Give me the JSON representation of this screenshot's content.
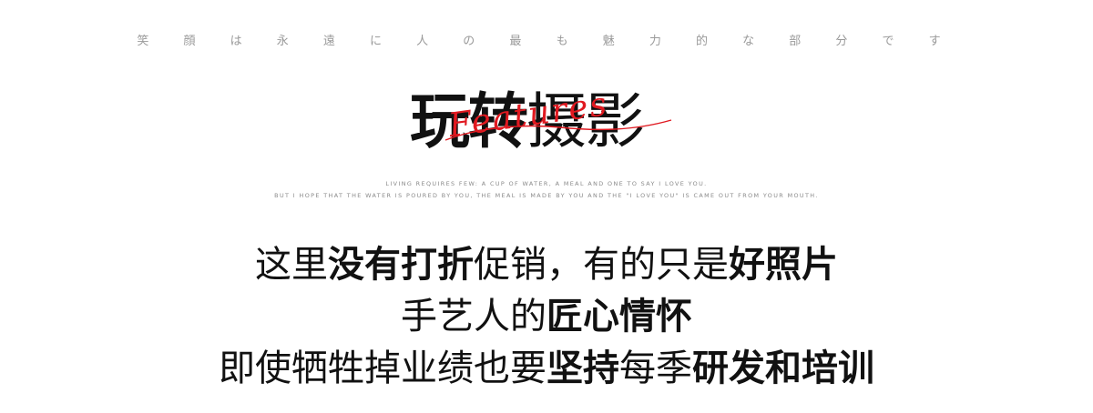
{
  "tagline": "笑 顔 は 永 遠 に 人 の 最 も 魅 力 的 な 部 分 で す",
  "title": {
    "bold": "玩转",
    "light": "摄影",
    "script": "Features"
  },
  "english": {
    "line1": "LIVING REQUIRES FEW: A CUP OF WATER, A MEAL AND ONE TO SAY I LOVE YOU.",
    "line2": "BUT I HOPE THAT THE WATER IS POURED BY YOU, THE MEAL IS MADE BY YOU AND THE \"I LOVE YOU\" IS CAME OUT FROM YOUR MOUTH."
  },
  "lines": {
    "line1": {
      "part1": "这里",
      "part2": "没有打折",
      "part3": "促销，有的只是",
      "part4": "好照片"
    },
    "line2": {
      "part1": "手艺人的",
      "part2": "匠心情怀"
    },
    "line3": {
      "part1": "即使牺牲掉业绩也要",
      "part2": "坚持",
      "part3": "每季",
      "part4": "研发和培训"
    }
  },
  "colors": {
    "accent": "#e01920",
    "text": "#111111",
    "muted": "#9a9a9a"
  }
}
